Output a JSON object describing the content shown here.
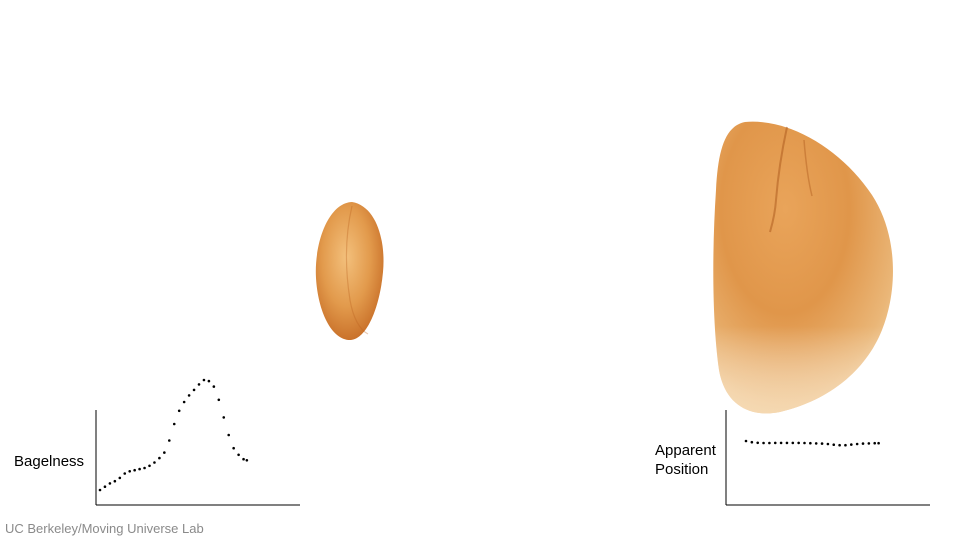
{
  "left_panel": {
    "ylabel": "Bagelness",
    "curve": [
      [
        0.0,
        0.0
      ],
      [
        0.03,
        0.03
      ],
      [
        0.06,
        0.06
      ],
      [
        0.09,
        0.08
      ],
      [
        0.12,
        0.11
      ],
      [
        0.15,
        0.15
      ],
      [
        0.18,
        0.17
      ],
      [
        0.21,
        0.18
      ],
      [
        0.24,
        0.19
      ],
      [
        0.27,
        0.2
      ],
      [
        0.3,
        0.22
      ],
      [
        0.33,
        0.25
      ],
      [
        0.36,
        0.29
      ],
      [
        0.39,
        0.34
      ],
      [
        0.42,
        0.45
      ],
      [
        0.45,
        0.6
      ],
      [
        0.48,
        0.72
      ],
      [
        0.51,
        0.8
      ],
      [
        0.54,
        0.86
      ],
      [
        0.57,
        0.91
      ],
      [
        0.6,
        0.96
      ],
      [
        0.63,
        1.0
      ],
      [
        0.66,
        0.99
      ],
      [
        0.69,
        0.94
      ],
      [
        0.72,
        0.82
      ],
      [
        0.75,
        0.66
      ],
      [
        0.78,
        0.5
      ],
      [
        0.81,
        0.38
      ],
      [
        0.84,
        0.32
      ],
      [
        0.87,
        0.28
      ],
      [
        0.89,
        0.27
      ]
    ]
  },
  "right_panel": {
    "ylabel_line1": "Apparent",
    "ylabel_line2": "Position",
    "curve": [
      [
        0.0,
        1.0
      ],
      [
        0.03,
        0.88
      ],
      [
        0.06,
        0.82
      ],
      [
        0.09,
        0.8
      ],
      [
        0.12,
        0.8
      ],
      [
        0.15,
        0.81
      ],
      [
        0.18,
        0.81
      ],
      [
        0.21,
        0.81
      ],
      [
        0.24,
        0.81
      ],
      [
        0.27,
        0.81
      ],
      [
        0.3,
        0.8
      ],
      [
        0.33,
        0.78
      ],
      [
        0.36,
        0.76
      ],
      [
        0.39,
        0.74
      ],
      [
        0.42,
        0.7
      ],
      [
        0.45,
        0.63
      ],
      [
        0.48,
        0.58
      ],
      [
        0.51,
        0.58
      ],
      [
        0.54,
        0.64
      ],
      [
        0.57,
        0.7
      ],
      [
        0.6,
        0.74
      ],
      [
        0.63,
        0.76
      ],
      [
        0.66,
        0.78
      ],
      [
        0.68,
        0.78
      ]
    ]
  },
  "colors": {
    "crust_light": "#f4c98e",
    "crust_mid": "#e29a4c",
    "crust_dark": "#c86a22",
    "axis": "#000000",
    "credit": "#8a8a8a"
  },
  "credit": "UC Berkeley/Moving Universe Lab"
}
